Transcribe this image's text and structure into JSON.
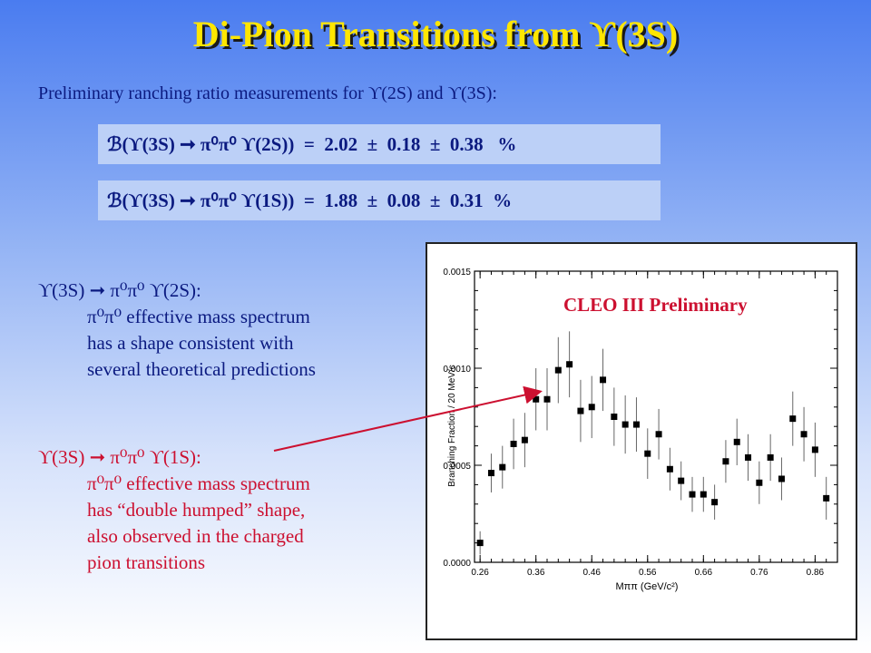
{
  "slide": {
    "title": "Di-Pion Transitions from ϒ(3S)",
    "subtitle": "Preliminary ranching ratio measurements for ϒ(2S) and ϒ(3S):",
    "formulas": [
      "ℬ(ϒ(3S) ➞ π⁰π⁰ ϒ(2S))  =  2.02  ±  0.18  ±  0.38   %",
      "ℬ(ϒ(3S) ➞ π⁰π⁰ ϒ(1S))  =  1.88  ±  0.08  ±  0.31  %"
    ],
    "bullet1": {
      "head": "ϒ(3S) ➞ π⁰π⁰ ϒ(2S):",
      "lines": [
        "π⁰π⁰ effective mass spectrum",
        "has a shape consistent with",
        "several theoretical predictions"
      ]
    },
    "bullet2": {
      "head": "ϒ(3S) ➞ π⁰π⁰ ϒ(1S):",
      "lines": [
        "π⁰π⁰ effective mass spectrum",
        "has “double humped” shape,",
        "also observed in the charged",
        "pion transitions"
      ]
    },
    "annotation": "CLEO III Preliminary",
    "colors": {
      "title": "#ffe600",
      "text": "#0b1a80",
      "accent": "#cc1030",
      "formula_bg": "#bcd0f7"
    }
  },
  "chart_data": {
    "type": "scatter",
    "xlabel": "Mππ (GeV/c²)",
    "ylabel": "Branching Fraction / 20 MeV/c",
    "xlim": [
      0.25,
      0.9
    ],
    "ylim": [
      0,
      0.0015
    ],
    "xticks": [
      "0.26",
      "0.36",
      "0.46",
      "0.56",
      "0.66",
      "0.76",
      "0.86"
    ],
    "yticks": [
      "0.0000",
      "0.0005",
      "0.0010",
      "0.0015"
    ],
    "points": [
      {
        "x": 0.26,
        "y": 0.0001,
        "err": 6e-05
      },
      {
        "x": 0.28,
        "y": 0.00046,
        "err": 0.0001
      },
      {
        "x": 0.3,
        "y": 0.00049,
        "err": 0.00011
      },
      {
        "x": 0.32,
        "y": 0.00061,
        "err": 0.00013
      },
      {
        "x": 0.34,
        "y": 0.00063,
        "err": 0.00014
      },
      {
        "x": 0.36,
        "y": 0.00084,
        "err": 0.00016
      },
      {
        "x": 0.38,
        "y": 0.00084,
        "err": 0.00016
      },
      {
        "x": 0.4,
        "y": 0.00099,
        "err": 0.00017
      },
      {
        "x": 0.42,
        "y": 0.00102,
        "err": 0.00017
      },
      {
        "x": 0.44,
        "y": 0.00078,
        "err": 0.00016
      },
      {
        "x": 0.46,
        "y": 0.0008,
        "err": 0.00016
      },
      {
        "x": 0.48,
        "y": 0.00094,
        "err": 0.00016
      },
      {
        "x": 0.5,
        "y": 0.00075,
        "err": 0.00015
      },
      {
        "x": 0.52,
        "y": 0.00071,
        "err": 0.00015
      },
      {
        "x": 0.54,
        "y": 0.00071,
        "err": 0.00014
      },
      {
        "x": 0.56,
        "y": 0.00056,
        "err": 0.00013
      },
      {
        "x": 0.58,
        "y": 0.00066,
        "err": 0.00013
      },
      {
        "x": 0.6,
        "y": 0.00048,
        "err": 0.00011
      },
      {
        "x": 0.62,
        "y": 0.00042,
        "err": 0.0001
      },
      {
        "x": 0.64,
        "y": 0.00035,
        "err": 9e-05
      },
      {
        "x": 0.66,
        "y": 0.00035,
        "err": 9e-05
      },
      {
        "x": 0.68,
        "y": 0.00031,
        "err": 9e-05
      },
      {
        "x": 0.7,
        "y": 0.00052,
        "err": 0.00011
      },
      {
        "x": 0.72,
        "y": 0.00062,
        "err": 0.00012
      },
      {
        "x": 0.74,
        "y": 0.00054,
        "err": 0.00012
      },
      {
        "x": 0.76,
        "y": 0.00041,
        "err": 0.00011
      },
      {
        "x": 0.78,
        "y": 0.00054,
        "err": 0.00012
      },
      {
        "x": 0.8,
        "y": 0.00043,
        "err": 0.00011
      },
      {
        "x": 0.82,
        "y": 0.00074,
        "err": 0.00014
      },
      {
        "x": 0.84,
        "y": 0.00066,
        "err": 0.00014
      },
      {
        "x": 0.86,
        "y": 0.00058,
        "err": 0.00014
      },
      {
        "x": 0.88,
        "y": 0.00033,
        "err": 0.00011
      }
    ],
    "grid": false
  }
}
